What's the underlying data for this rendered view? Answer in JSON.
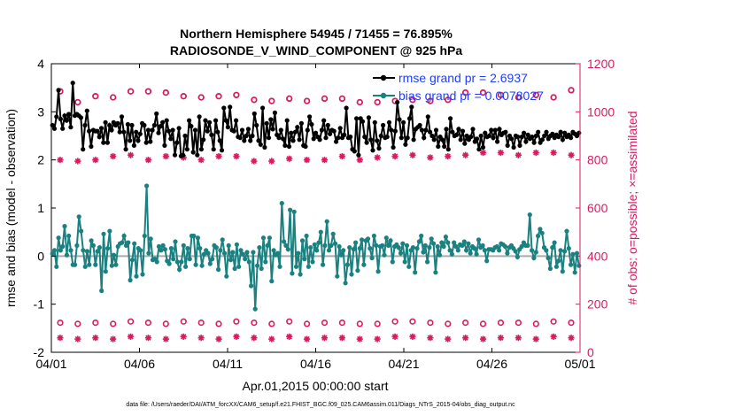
{
  "chart_data": {
    "type": "line",
    "title": [
      "Northern Hemisphere 54945 / 71455 = 76.895%",
      "RADIOSONDE_V_WIND_COMPONENT @ 925 hPa"
    ],
    "xlabel": "Apr.01,2015 00:00:00 start",
    "ylabel_left": "rmse and bias (model - observation)",
    "ylabel_right": "# of obs: o=possible; ×=assimilated",
    "footer": "data file: /Users/raeder/DAI/ATM_forcXX/CAM6_setup/f.e21.FHIST_BGC.f09_025.CAM6assim.011/Diags_NTrS_2015-04/obs_diag_output.nc",
    "x_ticks": [
      "04/01",
      "04/06",
      "04/11",
      "04/16",
      "04/21",
      "04/26",
      "05/01"
    ],
    "x_range_days": [
      0,
      30
    ],
    "ylim_left": [
      -2,
      4
    ],
    "yticks_left": [
      "-2",
      "-1",
      "0",
      "1",
      "2",
      "3",
      "4"
    ],
    "ylim_right": [
      0,
      1200
    ],
    "yticks_right": [
      "0",
      "200",
      "400",
      "600",
      "800",
      "1000",
      "1200"
    ],
    "legend": [
      {
        "label": "rmse grand pr = 2.6937",
        "color": "#000000"
      },
      {
        "label": "bias grand pr = 0.0078027",
        "color": "#1a8080"
      }
    ],
    "colors": {
      "rmse": "#000000",
      "bias": "#1a8080",
      "obs": "#d81b60",
      "label_text": "#1f3cff",
      "zero_line": "#aaaaaa"
    },
    "series": [
      {
        "name": "rmse",
        "axis": "left",
        "values": [
          2.72,
          2.65,
          2.9,
          3.45,
          2.85,
          2.65,
          2.92,
          2.82,
          2.95,
          2.68,
          3.6,
          2.92,
          2.95,
          2.92,
          2.88,
          2.22,
          2.72,
          3.02,
          2.6,
          2.28,
          2.62,
          2.6,
          2.6,
          2.48,
          2.66,
          2.36,
          2.78,
          2.36,
          2.72,
          2.62,
          2.78,
          2.72,
          2.76,
          2.58,
          2.9,
          2.58,
          2.22,
          2.74,
          2.4,
          2.72,
          2.3,
          2.58,
          2.4,
          2.54,
          2.76,
          2.72,
          2.36,
          2.62,
          2.38,
          2.62,
          2.72,
          2.96,
          2.56,
          2.7,
          2.78,
          2.3,
          2.82,
          2.6,
          2.44,
          2.62,
          2.1,
          2.36,
          2.66,
          2.08,
          2.1,
          2.5,
          2.22,
          2.82,
          2.7,
          2.16,
          2.62,
          2.1,
          2.9,
          2.22,
          2.42,
          2.82,
          2.6,
          2.78,
          2.52,
          2.22,
          2.82,
          2.58,
          2.4,
          2.2,
          3.08,
          2.82,
          2.68,
          3.1,
          2.62,
          2.6,
          2.82,
          2.48,
          2.46,
          2.62,
          2.4,
          2.5,
          2.64,
          2.4,
          2.5,
          2.96,
          2.72,
          2.4,
          2.32,
          3.08,
          2.26,
          2.76,
          2.46,
          2.84,
          2.64,
          2.98,
          2.52,
          2.46,
          2.62,
          2.44,
          2.3,
          2.82,
          2.28,
          2.56,
          2.4,
          2.58,
          2.68,
          2.42,
          2.76,
          2.3,
          2.28,
          2.62,
          2.9,
          2.74,
          2.44,
          2.56,
          2.48,
          2.42,
          2.62,
          2.82,
          2.46,
          2.72,
          2.54,
          2.62,
          2.6,
          2.38,
          2.46,
          2.66,
          2.46,
          2.52,
          3.08,
          2.46,
          2.48,
          2.22,
          2.18,
          2.86,
          2.1,
          2.86,
          2.8,
          2.48,
          2.36,
          2.88,
          2.42,
          2.2,
          2.78,
          2.4,
          2.24,
          2.5,
          2.72,
          2.46,
          2.48,
          2.78,
          2.62,
          2.26,
          2.6,
          3.2,
          2.84,
          2.46,
          2.78,
          2.32,
          2.46,
          2.86,
          3.1,
          2.42,
          2.64,
          2.68,
          2.72,
          2.62,
          2.46,
          2.62,
          2.9,
          2.58,
          2.5,
          2.42,
          2.62,
          2.28,
          2.48,
          2.42,
          2.28,
          2.64,
          2.22,
          2.86,
          2.58,
          2.5,
          2.52,
          2.64,
          2.42,
          2.6,
          2.34,
          2.5,
          2.42,
          2.48,
          2.64,
          2.38,
          2.44,
          2.22,
          2.5,
          2.26,
          2.56,
          2.48,
          2.5,
          2.62,
          2.46,
          2.62,
          2.38,
          2.64,
          2.52,
          2.56,
          2.58,
          2.3,
          2.5,
          2.44,
          2.26,
          2.5,
          2.48,
          2.3,
          2.48,
          2.56,
          2.38,
          2.52,
          2.44,
          2.48,
          2.36,
          2.5,
          2.58,
          2.36,
          2.42,
          2.5,
          2.58,
          2.44,
          2.5,
          2.54,
          2.46,
          2.52,
          2.48,
          2.58,
          2.42,
          2.56,
          2.48,
          2.52,
          2.46,
          2.58,
          2.54,
          2.5,
          2.56
        ]
      },
      {
        "name": "bias",
        "axis": "left",
        "values": [
          0.05,
          0.12,
          -0.22,
          0.38,
          0.12,
          0.2,
          0.62,
          0.02,
          0.42,
          0.12,
          -0.18,
          -0.18,
          0.22,
          0.82,
          0.52,
          0.12,
          -0.22,
          0.1,
          -0.18,
          0.32,
          0.22,
          -0.18,
          0.1,
          0.18,
          -0.72,
          0.46,
          -0.32,
          0.16,
          0.52,
          -0.2,
          0.02,
          -0.18,
          0.2,
          0.26,
          0.28,
          0.42,
          0.22,
          0.28,
          -0.5,
          -0.08,
          0.26,
          -0.42,
          0.16,
          0.12,
          -0.38,
          0.42,
          1.46,
          0.06,
          0.36,
          -0.08,
          -0.06,
          -0.12,
          0.2,
          0.12,
          0.22,
          0.14,
          -0.1,
          -0.16,
          0.16,
          -0.06,
          0.3,
          -0.12,
          -0.28,
          -0.12,
          0.22,
          -0.22,
          0.16,
          -0.06,
          0.42,
          0.42,
          -0.18,
          0.38,
          0.16,
          -0.2,
          0.04,
          0.12,
          0.06,
          -0.16,
          -0.06,
          0.22,
          0.18,
          -0.28,
          0.12,
          0.34,
          0.06,
          -0.42,
          0.22,
          -0.08,
          0.08,
          -0.26,
          0.24,
          -0.22,
          0.12,
          0.04,
          -0.06,
          0.08,
          -0.12,
          -0.62,
          0.08,
          -1.1,
          -0.2,
          0.18,
          -0.26,
          0.38,
          -0.12,
          0.22,
          0.38,
          -0.52,
          0.12,
          0.02,
          0.06,
          -0.22,
          1.1,
          0.3,
          0.22,
          0.14,
          0.96,
          -0.36,
          0.92,
          -0.22,
          0.06,
          -0.38,
          0.32,
          -0.06,
          0.42,
          -0.22,
          0.18,
          -0.12,
          0.24,
          0.12,
          0.28,
          0.5,
          -0.18,
          0.22,
          0.72,
          0.12,
          0.22,
          0.46,
          0.26,
          -0.42,
          0.2,
          0.02,
          0.12,
          -0.56,
          -0.18,
          0.18,
          -0.38,
          0.14,
          0.28,
          -0.3,
          0.16,
          0.34,
          -0.18,
          0.32,
          0.36,
          0.16,
          -0.04,
          0.42,
          0.22,
          -0.32,
          0.2,
          0.22,
          0.02,
          0.38,
          0.22,
          0.32,
          -0.12,
          0.2,
          0.24,
          0.18,
          0.06,
          0.26,
          -0.12,
          0.22,
          -0.22,
          0.12,
          0.18,
          -0.34,
          0.16,
          0.3,
          0.42,
          0.08,
          0.22,
          -0.12,
          0.18,
          0.36,
          0.26,
          -0.34,
          0.2,
          0.02,
          0.28,
          0.2,
          0.4,
          0.28,
          0.12,
          0.04,
          0.28,
          0.2,
          0.12,
          0.24,
          0.22,
          0.3,
          0.12,
          0.26,
          0.06,
          0.2,
          0.16,
          0.04,
          0.34,
          0.18,
          0.22,
          0.12,
          -0.1,
          0.14,
          0.14,
          0.12,
          0.18,
          0.2,
          0.12,
          0.26,
          0.24,
          0.2,
          0.06,
          0.18,
          0.22,
          0.16,
          0.1,
          -0.02,
          0.14,
          0.2,
          0.28,
          0.22,
          0.22,
          0.86,
          0.12,
          -0.04,
          0.08,
          0.42,
          0.56,
          0.48,
          0.18,
          0.12,
          -0.04,
          -0.26,
          0.18,
          0.28,
          -0.22,
          -0.1,
          0.12,
          -0.32,
          0.1,
          0.52,
          0.16,
          -0.18,
          0.04,
          -0.34,
          0.06,
          -0.2
        ]
      },
      {
        "name": "possible (daily)",
        "axis": "right",
        "values": [
          1085,
          1040,
          1065,
          1060,
          1085,
          1085,
          1080,
          1065,
          1060,
          1065,
          1070,
          1050,
          1045,
          1055,
          1045,
          1055,
          1055,
          1040,
          1040,
          1045,
          1050,
          1045,
          1050,
          1080,
          1080,
          1070,
          1060,
          1070,
          1060,
          1090
        ]
      },
      {
        "name": "assimilated (daily)",
        "axis": "right",
        "values": [
          800,
          795,
          800,
          815,
          820,
          800,
          815,
          810,
          800,
          815,
          815,
          795,
          795,
          805,
          800,
          800,
          815,
          800,
          810,
          815,
          820,
          810,
          815,
          820,
          830,
          830,
          820,
          830,
          830,
          820
        ]
      },
      {
        "name": "possible (daily, low)",
        "axis": "right",
        "values": [
          85,
          80,
          85,
          80,
          90,
          85,
          80,
          90,
          85,
          80,
          90,
          85,
          80,
          90,
          80,
          85,
          85,
          80,
          80,
          90,
          90,
          85,
          80,
          85,
          80,
          85,
          85,
          80,
          90,
          85
        ]
      },
      {
        "name": "assimilated (daily, low)",
        "axis": "right",
        "values": [
          60,
          55,
          60,
          55,
          65,
          60,
          55,
          65,
          60,
          55,
          65,
          60,
          55,
          65,
          55,
          60,
          60,
          55,
          55,
          65,
          65,
          60,
          55,
          60,
          55,
          60,
          60,
          55,
          65,
          60
        ]
      }
    ]
  }
}
